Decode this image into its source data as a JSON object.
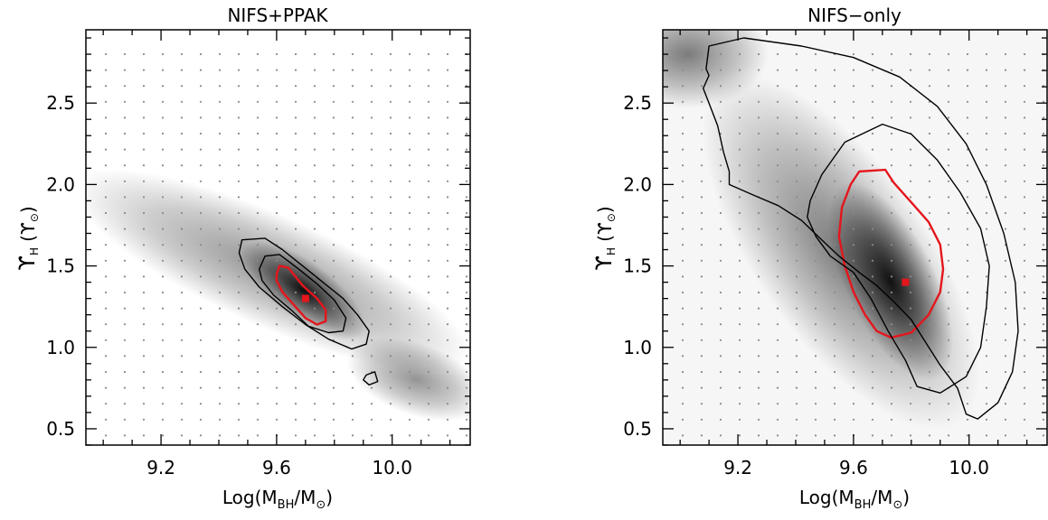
{
  "chart_data": [
    {
      "type": "scatter",
      "title": "NIFS+PPAK",
      "xlabel": "Log(M",
      "xlabel_sub1": "BH",
      "xlabel_mid": "/M",
      "xlabel_sub2": "⊙",
      "xlabel_end": ")",
      "ylabel": "ϒ",
      "ylabel_sub": "H",
      "ylabel_unit": "(ϒ",
      "ylabel_unit_sub": "⊙",
      "ylabel_unit_end": ")",
      "xlim": [
        8.94,
        10.27
      ],
      "ylim": [
        0.4,
        2.95
      ],
      "xticks": [
        "9.2",
        "9.6",
        "10.0"
      ],
      "yticks": [
        "0.5",
        "1.0",
        "1.5",
        "2.0",
        "2.5"
      ],
      "best_fit": {
        "x": 9.7,
        "y": 1.3
      },
      "contours": [
        {
          "level": "inner",
          "color": "#e4161c",
          "points": [
            [
              9.6,
              1.45
            ],
            [
              9.61,
              1.5
            ],
            [
              9.64,
              1.49
            ],
            [
              9.69,
              1.38
            ],
            [
              9.74,
              1.3
            ],
            [
              9.77,
              1.23
            ],
            [
              9.77,
              1.16
            ],
            [
              9.74,
              1.14
            ],
            [
              9.7,
              1.18
            ],
            [
              9.66,
              1.26
            ],
            [
              9.62,
              1.34
            ],
            [
              9.6,
              1.41
            ]
          ]
        },
        {
          "level": "middle",
          "color": "#000000",
          "points": [
            [
              9.54,
              1.48
            ],
            [
              9.56,
              1.56
            ],
            [
              9.61,
              1.57
            ],
            [
              9.67,
              1.49
            ],
            [
              9.74,
              1.39
            ],
            [
              9.8,
              1.29
            ],
            [
              9.84,
              1.18
            ],
            [
              9.83,
              1.1
            ],
            [
              9.78,
              1.09
            ],
            [
              9.71,
              1.13
            ],
            [
              9.65,
              1.23
            ],
            [
              9.59,
              1.32
            ],
            [
              9.55,
              1.41
            ]
          ]
        },
        {
          "level": "outer",
          "color": "#000000",
          "points": [
            [
              9.47,
              1.58
            ],
            [
              9.48,
              1.66
            ],
            [
              9.56,
              1.67
            ],
            [
              9.62,
              1.6
            ],
            [
              9.69,
              1.5
            ],
            [
              9.76,
              1.4
            ],
            [
              9.83,
              1.3
            ],
            [
              9.88,
              1.2
            ],
            [
              9.92,
              1.1
            ],
            [
              9.91,
              1.02
            ],
            [
              9.86,
              0.99
            ],
            [
              9.78,
              1.05
            ],
            [
              9.7,
              1.14
            ],
            [
              9.62,
              1.25
            ],
            [
              9.54,
              1.37
            ],
            [
              9.49,
              1.48
            ]
          ]
        },
        {
          "level": "outer-island",
          "color": "#000000",
          "points": [
            [
              9.91,
              0.83
            ],
            [
              9.94,
              0.85
            ],
            [
              9.95,
              0.79
            ],
            [
              9.92,
              0.77
            ],
            [
              9.9,
              0.8
            ]
          ]
        }
      ]
    },
    {
      "type": "scatter",
      "title": "NIFS−only",
      "xlabel": "Log(M",
      "xlabel_sub1": "BH",
      "xlabel_mid": "/M",
      "xlabel_sub2": "⊙",
      "xlabel_end": ")",
      "ylabel": "ϒ",
      "ylabel_sub": "H",
      "ylabel_unit": "(ϒ",
      "ylabel_unit_sub": "⊙",
      "ylabel_unit_end": ")",
      "xlim": [
        8.94,
        10.27
      ],
      "ylim": [
        0.4,
        2.95
      ],
      "xticks": [
        "9.2",
        "9.6",
        "10.0"
      ],
      "yticks": [
        "0.5",
        "1.0",
        "1.5",
        "2.0",
        "2.5"
      ],
      "best_fit": {
        "x": 9.78,
        "y": 1.4
      },
      "contours": [
        {
          "level": "inner",
          "color": "#e4161c",
          "points": [
            [
              9.62,
              2.08
            ],
            [
              9.71,
              2.09
            ],
            [
              9.74,
              2.01
            ],
            [
              9.79,
              1.91
            ],
            [
              9.86,
              1.77
            ],
            [
              9.9,
              1.63
            ],
            [
              9.91,
              1.48
            ],
            [
              9.9,
              1.34
            ],
            [
              9.86,
              1.2
            ],
            [
              9.8,
              1.09
            ],
            [
              9.73,
              1.06
            ],
            [
              9.68,
              1.1
            ],
            [
              9.64,
              1.2
            ],
            [
              9.6,
              1.34
            ],
            [
              9.57,
              1.5
            ],
            [
              9.55,
              1.68
            ],
            [
              9.56,
              1.86
            ],
            [
              9.59,
              2.0
            ]
          ]
        },
        {
          "level": "middle",
          "color": "#000000",
          "points": [
            [
              9.45,
              1.9
            ],
            [
              9.49,
              2.06
            ],
            [
              9.57,
              2.26
            ],
            [
              9.7,
              2.37
            ],
            [
              9.8,
              2.31
            ],
            [
              9.89,
              2.15
            ],
            [
              9.97,
              1.95
            ],
            [
              10.04,
              1.73
            ],
            [
              10.07,
              1.5
            ],
            [
              10.06,
              1.25
            ],
            [
              10.04,
              1.0
            ],
            [
              9.99,
              0.82
            ],
            [
              9.9,
              0.72
            ],
            [
              9.82,
              0.76
            ],
            [
              9.78,
              0.92
            ],
            [
              9.72,
              1.1
            ],
            [
              9.66,
              1.3
            ],
            [
              9.6,
              1.46
            ],
            [
              9.52,
              1.56
            ],
            [
              9.47,
              1.68
            ],
            [
              9.44,
              1.8
            ]
          ]
        },
        {
          "level": "outer",
          "color": "#000000",
          "points": [
            [
              9.09,
              2.71
            ],
            [
              9.1,
              2.85
            ],
            [
              9.22,
              2.9
            ],
            [
              9.42,
              2.85
            ],
            [
              9.6,
              2.78
            ],
            [
              9.76,
              2.66
            ],
            [
              9.89,
              2.48
            ],
            [
              9.99,
              2.25
            ],
            [
              10.06,
              2.0
            ],
            [
              10.12,
              1.7
            ],
            [
              10.16,
              1.4
            ],
            [
              10.17,
              1.1
            ],
            [
              10.15,
              0.85
            ],
            [
              10.1,
              0.66
            ],
            [
              10.03,
              0.56
            ],
            [
              9.99,
              0.59
            ],
            [
              9.96,
              0.75
            ],
            [
              9.9,
              0.89
            ],
            [
              9.85,
              1.03
            ],
            [
              9.8,
              1.17
            ],
            [
              9.74,
              1.28
            ],
            [
              9.68,
              1.38
            ],
            [
              9.62,
              1.46
            ],
            [
              9.55,
              1.56
            ],
            [
              9.49,
              1.66
            ],
            [
              9.42,
              1.78
            ],
            [
              9.34,
              1.87
            ],
            [
              9.26,
              1.93
            ],
            [
              9.17,
              2.0
            ],
            [
              9.17,
              2.08
            ],
            [
              9.15,
              2.2
            ],
            [
              9.13,
              2.36
            ],
            [
              9.1,
              2.5
            ],
            [
              9.08,
              2.59
            ],
            [
              9.1,
              2.67
            ]
          ]
        }
      ]
    }
  ]
}
